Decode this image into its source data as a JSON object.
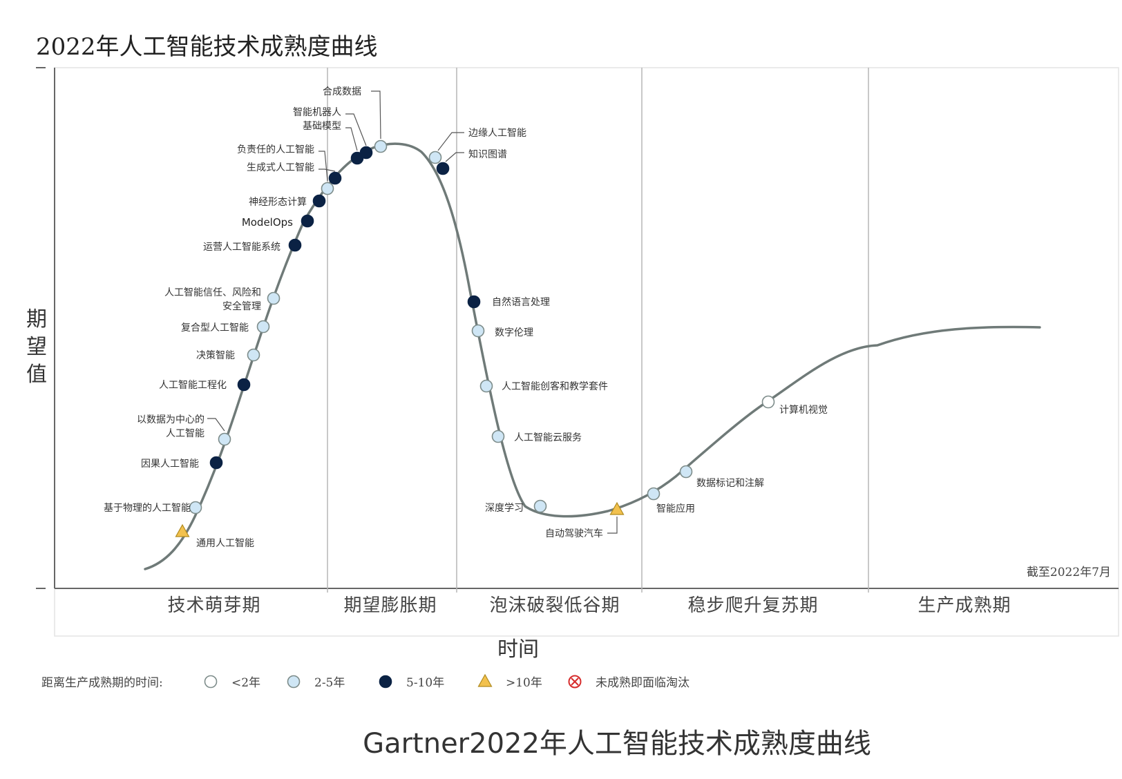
{
  "chart_data": {
    "type": "hype-cycle",
    "title": "2022年人工智能技术成熟度曲线",
    "caption": "Gartner2022年人工智能技术成熟度曲线",
    "ylabel": "期望值",
    "xlabel": "时间",
    "date_note": "截至2022年7月",
    "phases": [
      "技术萌芽期",
      "期望膨胀期",
      "泡沫破裂低谷期",
      "稳步爬升复苏期",
      "生产成熟期"
    ],
    "legend": {
      "title": "距离生产成熟期的时间:",
      "items": [
        {
          "key": "lt2",
          "label": "<2年"
        },
        {
          "key": "2to5",
          "label": "2-5年"
        },
        {
          "key": "5to10",
          "label": "5-10年"
        },
        {
          "key": "gt10",
          "label": ">10年"
        },
        {
          "key": "obsolete",
          "label": "未成熟即面临淘汰"
        }
      ]
    },
    "points": [
      {
        "label": "通用人工智能",
        "time": "gt10"
      },
      {
        "label": "基于物理的人工智能",
        "time": "2to5"
      },
      {
        "label": "因果人工智能",
        "time": "5to10"
      },
      {
        "label": "以数据为中心的人工智能",
        "label_lines": [
          "以数据为中心的",
          "人工智能"
        ],
        "time": "2to5"
      },
      {
        "label": "人工智能工程化",
        "time": "5to10"
      },
      {
        "label": "决策智能",
        "time": "2to5"
      },
      {
        "label": "复合型人工智能",
        "time": "2to5"
      },
      {
        "label": "人工智能信任、风险和安全管理",
        "label_lines": [
          "人工智能信任、风险和",
          "安全管理"
        ],
        "time": "2to5"
      },
      {
        "label": "运营人工智能系统",
        "time": "5to10"
      },
      {
        "label": "ModelOps",
        "time": "5to10"
      },
      {
        "label": "神经形态计算",
        "time": "5to10"
      },
      {
        "label": "负责任的人工智能",
        "time": "2to5"
      },
      {
        "label": "生成式人工智能",
        "time": "5to10"
      },
      {
        "label": "基础模型",
        "time": "5to10"
      },
      {
        "label": "智能机器人",
        "time": "5to10"
      },
      {
        "label": "合成数据",
        "time": "2to5"
      },
      {
        "label": "边缘人工智能",
        "time": "2to5"
      },
      {
        "label": "知识图谱",
        "time": "5to10"
      },
      {
        "label": "自然语言处理",
        "time": "5to10"
      },
      {
        "label": "数字伦理",
        "time": "2to5"
      },
      {
        "label": "人工智能创客和教学套件",
        "time": "2to5"
      },
      {
        "label": "人工智能云服务",
        "time": "2to5"
      },
      {
        "label": "深度学习",
        "time": "2to5"
      },
      {
        "label": "自动驾驶汽车",
        "time": "gt10"
      },
      {
        "label": "智能应用",
        "time": "2to5"
      },
      {
        "label": "数据标记和注解",
        "time": "2to5"
      },
      {
        "label": "计算机视觉",
        "time": "lt2"
      }
    ]
  },
  "colors": {
    "lt2": "#ffffff",
    "2to5": "#cfe6f5",
    "5to10": "#0b2244",
    "gt10": "#f2c14e",
    "obsolete": "#d62b2b",
    "curve": "#6f7a78",
    "divider": "#b5b5b5"
  }
}
